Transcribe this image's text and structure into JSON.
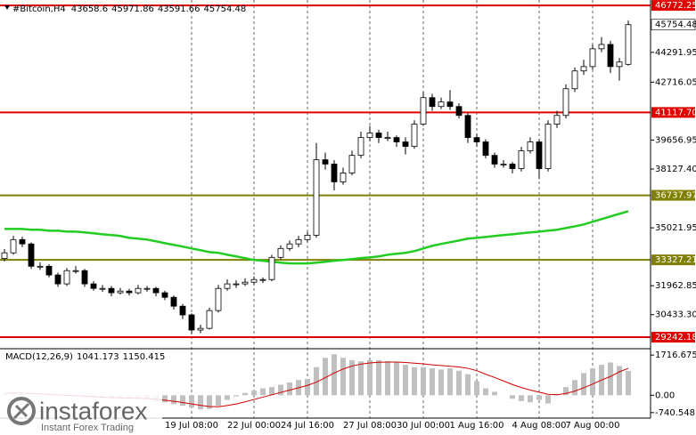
{
  "chart_data": [
    {
      "type": "candlestick",
      "title": "#Bitcoin,H4",
      "categories": [
        null,
        null,
        null,
        null,
        null,
        null,
        null,
        null,
        null,
        null,
        null,
        null,
        null,
        null,
        null,
        null,
        null,
        null,
        null,
        null,
        null,
        "19 Jul 08:00",
        null,
        null,
        null,
        null,
        null,
        null,
        "22 Jul 00:00",
        null,
        null,
        null,
        null,
        null,
        "24 Jul 16:00",
        null,
        null,
        null,
        null,
        null,
        null,
        "27 Jul 08:00",
        null,
        null,
        null,
        null,
        null,
        "30 Jul 00:00",
        null,
        null,
        null,
        null,
        null,
        "1 Aug 16:00",
        null,
        null,
        null,
        null,
        null,
        null,
        "4 Aug 08:00",
        null,
        null,
        null,
        null,
        null,
        "7 Aug 00:00",
        null,
        null,
        null,
        null
      ],
      "open": [
        33400,
        33700,
        34400,
        34170,
        32990,
        32990,
        32530,
        32060,
        32760,
        32760,
        32060,
        31820,
        31820,
        31590,
        31680,
        31590,
        31820,
        31820,
        31590,
        31350,
        30880,
        30420,
        29620,
        29710,
        30650,
        31820,
        32060,
        32060,
        32150,
        32290,
        32290,
        33460,
        33930,
        34170,
        34400,
        34630,
        38620,
        38390,
        37450,
        37920,
        38850,
        39790,
        40030,
        39790,
        39790,
        39560,
        39320,
        40500,
        41900,
        41430,
        41670,
        41430,
        40960,
        39790,
        39560,
        38850,
        38390,
        38390,
        38150,
        39090,
        39560,
        38150,
        40500,
        40960,
        42370,
        43310,
        43540,
        44480,
        44710,
        43540,
        43658.6
      ],
      "high": [
        33900,
        34600,
        34550,
        34250,
        33200,
        33100,
        32650,
        32900,
        33000,
        32850,
        32200,
        32000,
        31950,
        31850,
        31800,
        32000,
        31950,
        31900,
        31700,
        31450,
        31000,
        30500,
        29900,
        30800,
        32000,
        32300,
        32250,
        32350,
        32450,
        32400,
        33600,
        34100,
        34350,
        34600,
        34800,
        39500,
        39000,
        38600,
        38200,
        39100,
        40100,
        40400,
        40200,
        40100,
        39900,
        39800,
        40700,
        42200,
        42100,
        41900,
        42300,
        41600,
        41100,
        40000,
        39700,
        39000,
        38600,
        38500,
        39300,
        39800,
        39700,
        40700,
        41200,
        42600,
        43500,
        43900,
        44700,
        45100,
        44900,
        44000,
        45971.86
      ],
      "low": [
        33250,
        33600,
        34000,
        32850,
        32800,
        32400,
        31900,
        31950,
        32600,
        31900,
        31700,
        31650,
        31400,
        31500,
        31450,
        31500,
        31650,
        31400,
        31200,
        30700,
        30200,
        29400,
        29450,
        29650,
        30550,
        31700,
        31850,
        31950,
        32000,
        32100,
        32200,
        33350,
        33800,
        34000,
        34250,
        34500,
        38100,
        37000,
        37300,
        37800,
        38700,
        39600,
        39500,
        39600,
        39300,
        38900,
        39200,
        40400,
        41200,
        41300,
        41250,
        40800,
        39500,
        39300,
        38700,
        38200,
        38200,
        37900,
        38000,
        38950,
        37600,
        38000,
        40300,
        40800,
        42200,
        43100,
        43400,
        44300,
        43200,
        42800,
        43591.66
      ],
      "close": [
        33700,
        34400,
        34170,
        32990,
        32990,
        32530,
        32060,
        32760,
        32760,
        32060,
        31820,
        31820,
        31590,
        31680,
        31590,
        31820,
        31820,
        31590,
        31350,
        30880,
        30420,
        29620,
        29710,
        30650,
        31820,
        32060,
        32060,
        32150,
        32290,
        32290,
        33460,
        33930,
        34170,
        34400,
        34630,
        38620,
        38390,
        37450,
        37920,
        38850,
        39790,
        40030,
        39790,
        39790,
        39560,
        39320,
        40500,
        41900,
        41430,
        41670,
        41430,
        40960,
        39790,
        39560,
        38850,
        38390,
        38390,
        38150,
        39090,
        39560,
        38150,
        40500,
        40960,
        42370,
        43310,
        43540,
        44480,
        44710,
        43540,
        43780,
        45754.48
      ],
      "ma": {
        "color": "#22cc22",
        "values": [
          34960,
          34960,
          34960,
          34920,
          34920,
          34870,
          34870,
          34820,
          34820,
          34780,
          34730,
          34680,
          34640,
          34590,
          34490,
          34450,
          34400,
          34310,
          34210,
          34120,
          34030,
          33930,
          33840,
          33740,
          33700,
          33600,
          33510,
          33420,
          33320,
          33280,
          33230,
          33180,
          33140,
          33140,
          33140,
          33180,
          33230,
          33280,
          33320,
          33370,
          33420,
          33460,
          33510,
          33600,
          33650,
          33700,
          33790,
          33930,
          34070,
          34170,
          34260,
          34350,
          34450,
          34490,
          34540,
          34590,
          34640,
          34680,
          34730,
          34780,
          34820,
          34870,
          34920,
          35010,
          35100,
          35200,
          35340,
          35480,
          35620,
          35760,
          35900
        ]
      },
      "levels": [
        {
          "value": 46772.25,
          "color": "#e00000"
        },
        {
          "value": 41117.7,
          "label": "41117.70",
          "color": "#e00000"
        },
        {
          "value": 36737.97,
          "color": "#808000"
        },
        {
          "value": 33327.21,
          "color": "#808000"
        },
        {
          "value": 29242.18,
          "color": "#e00000"
        }
      ],
      "ylim": [
        28681,
        47058
      ],
      "yticks": [
        44291.95,
        42716.05,
        39656.95,
        {
          "value": 38127.4,
          "label": "38127.40"
        },
        35021.95,
        31962.85,
        {
          "value": 30433.3,
          "label": "30433.30"
        }
      ],
      "grid": true
    },
    {
      "type": "macd",
      "title": "MACD(12,26,9)",
      "hist_color": "#c0c0c0",
      "signal_color": "#d00000",
      "histogram": [
        50,
        80,
        60,
        20,
        -20,
        -40,
        -30,
        -20,
        -60,
        -80,
        -100,
        -120,
        -130,
        -150,
        -130,
        -120,
        -150,
        -250,
        -300,
        -380,
        -450,
        -520,
        -600,
        -580,
        -450,
        -200,
        -50,
        100,
        200,
        300,
        350,
        450,
        550,
        650,
        700,
        1200,
        1600,
        1750,
        1600,
        1500,
        1450,
        1500,
        1500,
        1450,
        1400,
        1300,
        1200,
        1200,
        1150,
        1100,
        1150,
        1050,
        900,
        600,
        300,
        150,
        0,
        -150,
        -250,
        -300,
        -200,
        -350,
        50,
        350,
        650,
        950,
        1150,
        1300,
        1400,
        1250,
        1041.173
      ],
      "signal": [
        100,
        95,
        90,
        80,
        60,
        40,
        20,
        0,
        -20,
        -40,
        -60,
        -80,
        -100,
        -110,
        -120,
        -130,
        -140,
        -170,
        -210,
        -260,
        -310,
        -370,
        -430,
        -480,
        -490,
        -440,
        -370,
        -280,
        -180,
        -80,
        20,
        120,
        220,
        320,
        420,
        560,
        750,
        950,
        1120,
        1250,
        1330,
        1380,
        1410,
        1420,
        1420,
        1400,
        1370,
        1340,
        1300,
        1270,
        1240,
        1210,
        1150,
        1050,
        900,
        760,
        610,
        460,
        330,
        220,
        130,
        40,
        20,
        80,
        180,
        320,
        480,
        650,
        800,
        1000,
        1150.415
      ],
      "ylim": [
        -975,
        1950
      ],
      "yticks": [
        1716.675,
        {
          "value": 0,
          "label": "0.00"
        },
        -740.548
      ]
    }
  ],
  "watermark": {
    "brand": "instaforex",
    "tagline": "Instant Forex Trading"
  }
}
